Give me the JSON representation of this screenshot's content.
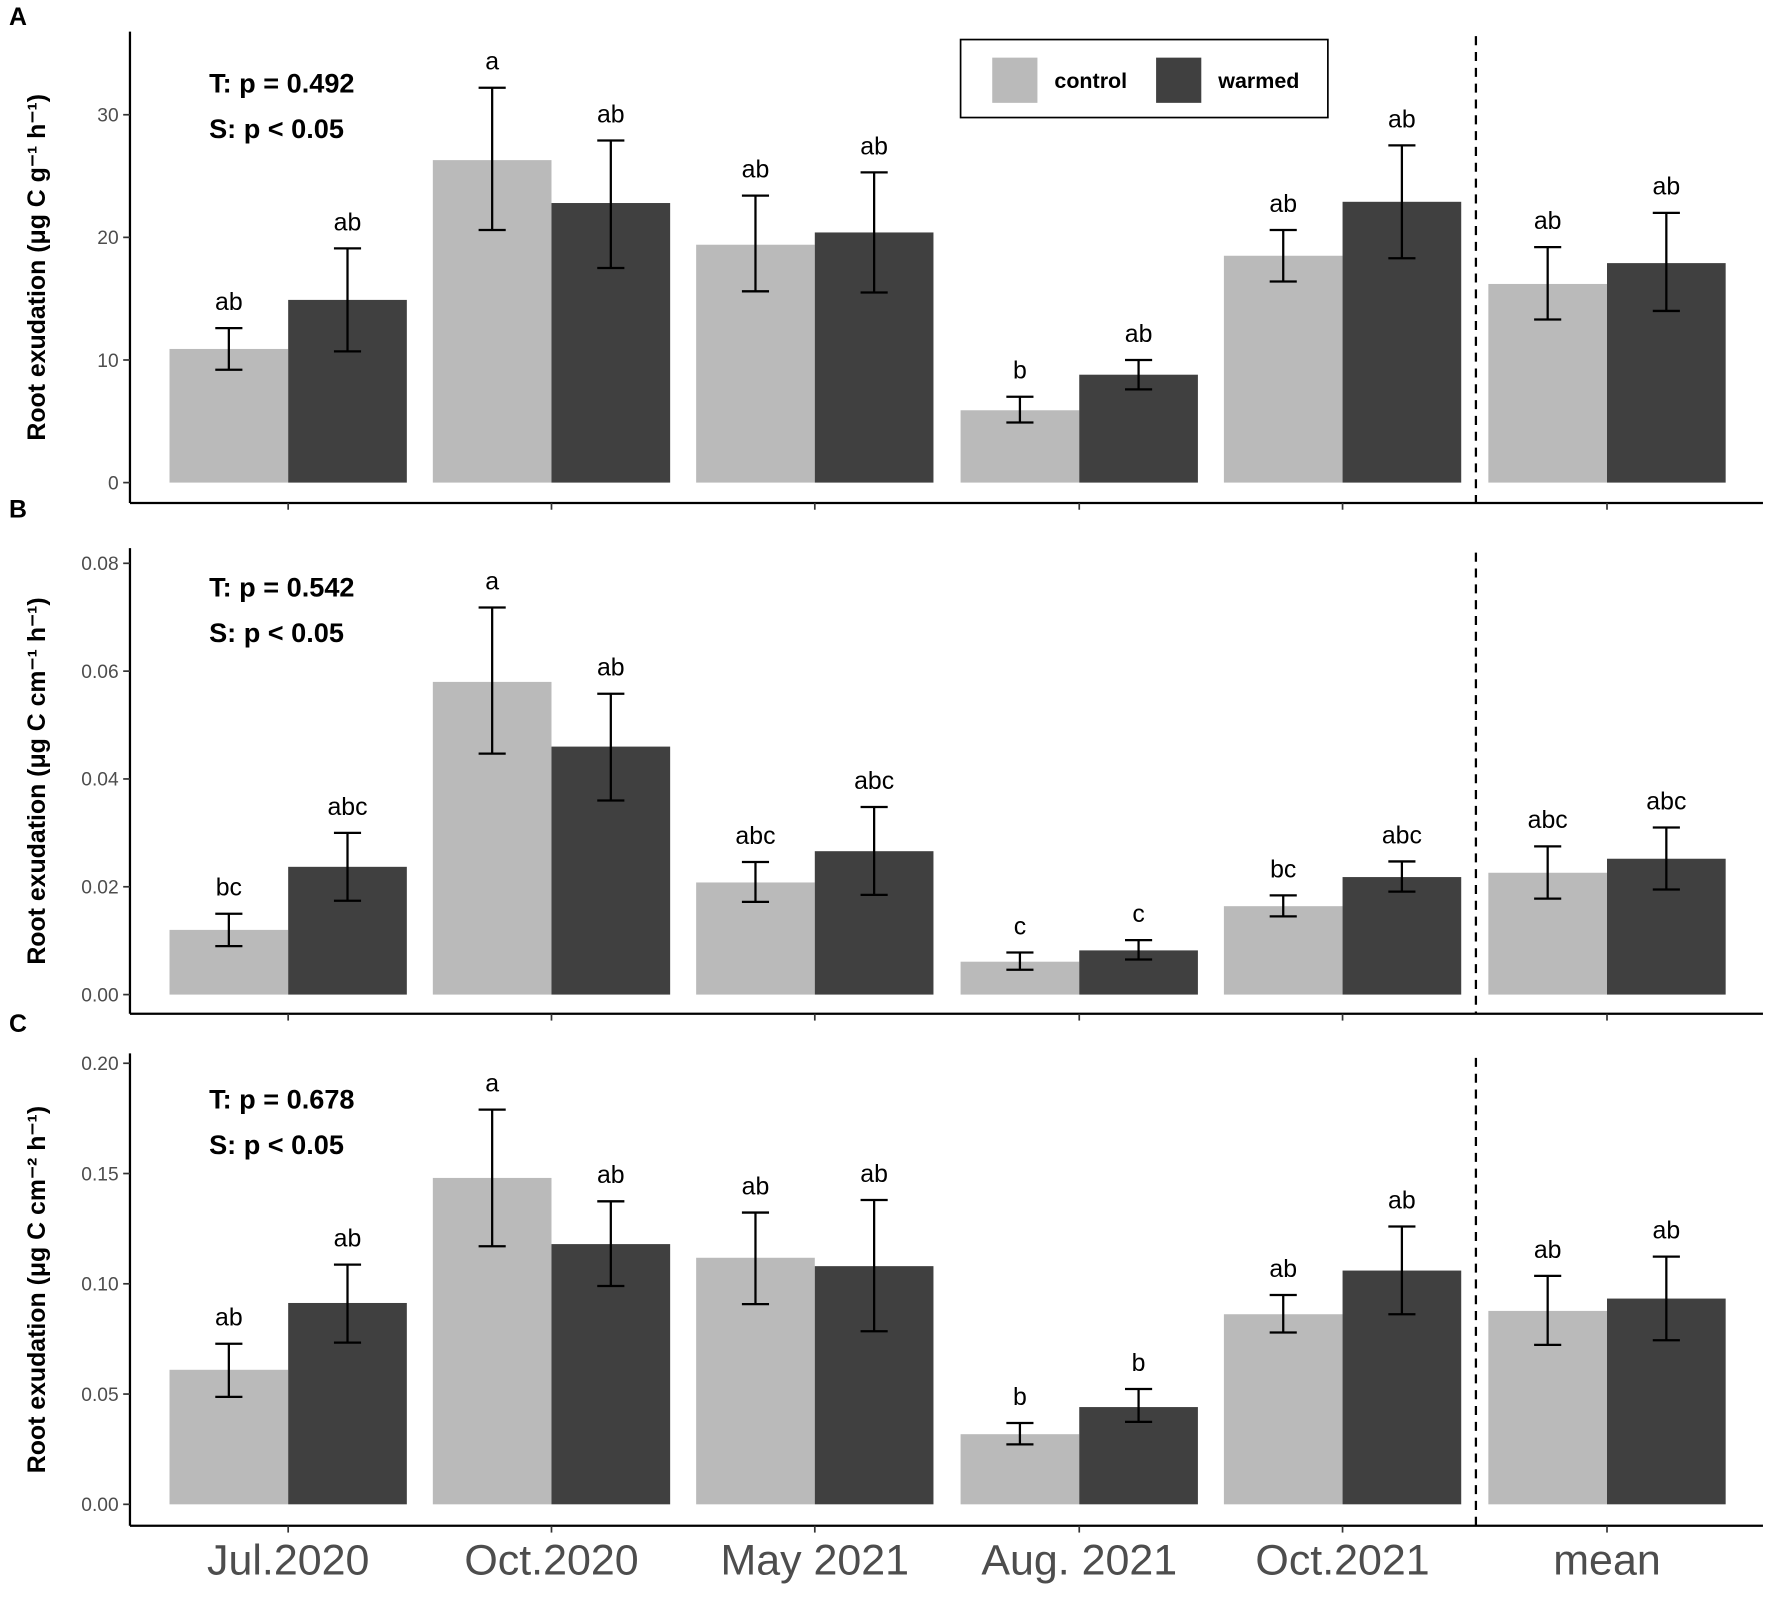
{
  "colors": {
    "control": "#bababa",
    "warmed": "#404040",
    "axis": "#000000"
  },
  "legend": {
    "items": [
      {
        "key": "control",
        "label": "control"
      },
      {
        "key": "warmed",
        "label": "warmed"
      }
    ]
  },
  "chart_data": [
    {
      "type": "bar",
      "panel": "A",
      "ylabel": "Root exudation (μg C g⁻¹ h⁻¹)",
      "ylim": [
        0,
        36.5
      ],
      "yticks": [
        0,
        10,
        20,
        30
      ],
      "ytick_labels": [
        "0",
        "10",
        "20",
        "30"
      ],
      "stats": [
        "T: p = 0.492",
        "S: p < 0.05"
      ],
      "categories": [
        "Jul.2020",
        "Oct.2020",
        "May 2021",
        "Aug. 2021",
        "Oct.2021",
        "mean"
      ],
      "series": [
        {
          "name": "control",
          "values": [
            10.9,
            26.3,
            19.4,
            5.9,
            18.5,
            16.2
          ],
          "err_low": [
            9.2,
            20.6,
            15.6,
            4.9,
            16.4,
            13.3
          ],
          "err_high": [
            12.6,
            32.2,
            23.4,
            7.0,
            20.6,
            19.2
          ],
          "letters": [
            "ab",
            "a",
            "ab",
            "b",
            "ab",
            "ab"
          ]
        },
        {
          "name": "warmed",
          "values": [
            14.9,
            22.8,
            20.4,
            8.8,
            22.9,
            17.9
          ],
          "err_low": [
            10.7,
            17.5,
            15.5,
            7.6,
            18.3,
            14.0
          ],
          "err_high": [
            19.1,
            27.9,
            25.3,
            10.0,
            27.5,
            22.0
          ],
          "letters": [
            "ab",
            "ab",
            "ab",
            "ab",
            "ab",
            "ab"
          ]
        }
      ]
    },
    {
      "type": "bar",
      "panel": "B",
      "ylabel": "Root exudation (μg C cm⁻¹ h⁻¹)",
      "ylim": [
        0,
        0.0826
      ],
      "yticks": [
        0,
        0.02,
        0.04,
        0.06,
        0.08
      ],
      "ytick_labels": [
        "0.00",
        "0.02",
        "0.04",
        "0.06",
        "0.08"
      ],
      "stats": [
        "T: p = 0.542",
        "S: p < 0.05"
      ],
      "categories": [
        "Jul.2020",
        "Oct.2020",
        "May 2021",
        "Aug. 2021",
        "Oct.2021",
        "mean"
      ],
      "series": [
        {
          "name": "control",
          "values": [
            0.012,
            0.058,
            0.0208,
            0.0061,
            0.0164,
            0.0226
          ],
          "err_low": [
            0.009,
            0.0447,
            0.0172,
            0.0046,
            0.0145,
            0.0178
          ],
          "err_high": [
            0.015,
            0.0718,
            0.0246,
            0.0078,
            0.0184,
            0.0275
          ],
          "letters": [
            "bc",
            "a",
            "abc",
            "c",
            "bc",
            "abc"
          ]
        },
        {
          "name": "warmed",
          "values": [
            0.0237,
            0.046,
            0.0266,
            0.0082,
            0.0218,
            0.0252
          ],
          "err_low": [
            0.0174,
            0.036,
            0.0185,
            0.0065,
            0.0191,
            0.0195
          ],
          "err_high": [
            0.03,
            0.0558,
            0.0348,
            0.0101,
            0.0247,
            0.031
          ],
          "letters": [
            "abc",
            "ab",
            "abc",
            "c",
            "abc",
            "abc"
          ]
        }
      ]
    },
    {
      "type": "bar",
      "panel": "C",
      "ylabel": "Root exudation (μg C cm⁻² h⁻¹)",
      "ylim": [
        0,
        0.205
      ],
      "yticks": [
        0,
        0.05,
        0.1,
        0.15,
        0.2
      ],
      "ytick_labels": [
        "0.00",
        "0.05",
        "0.10",
        "0.15",
        "0.20"
      ],
      "stats": [
        "T: p = 0.678",
        "S: p < 0.05"
      ],
      "categories": [
        "Jul.2020",
        "Oct.2020",
        "May 2021",
        "Aug. 2021",
        "Oct.2021",
        "mean"
      ],
      "series": [
        {
          "name": "control",
          "values": [
            0.061,
            0.148,
            0.1118,
            0.0318,
            0.0862,
            0.0877
          ],
          "err_low": [
            0.0487,
            0.117,
            0.0908,
            0.0272,
            0.0779,
            0.0723
          ],
          "err_high": [
            0.0728,
            0.179,
            0.1323,
            0.0369,
            0.0949,
            0.1036
          ],
          "letters": [
            "ab",
            "a",
            "ab",
            "b",
            "ab",
            "ab"
          ]
        },
        {
          "name": "warmed",
          "values": [
            0.0913,
            0.118,
            0.108,
            0.0441,
            0.106,
            0.0933
          ],
          "err_low": [
            0.0733,
            0.099,
            0.0785,
            0.0374,
            0.0862,
            0.0744
          ],
          "err_high": [
            0.1087,
            0.1374,
            0.138,
            0.0523,
            0.126,
            0.1123
          ],
          "letters": [
            "ab",
            "ab",
            "ab",
            "b",
            "ab",
            "ab"
          ]
        }
      ]
    }
  ]
}
